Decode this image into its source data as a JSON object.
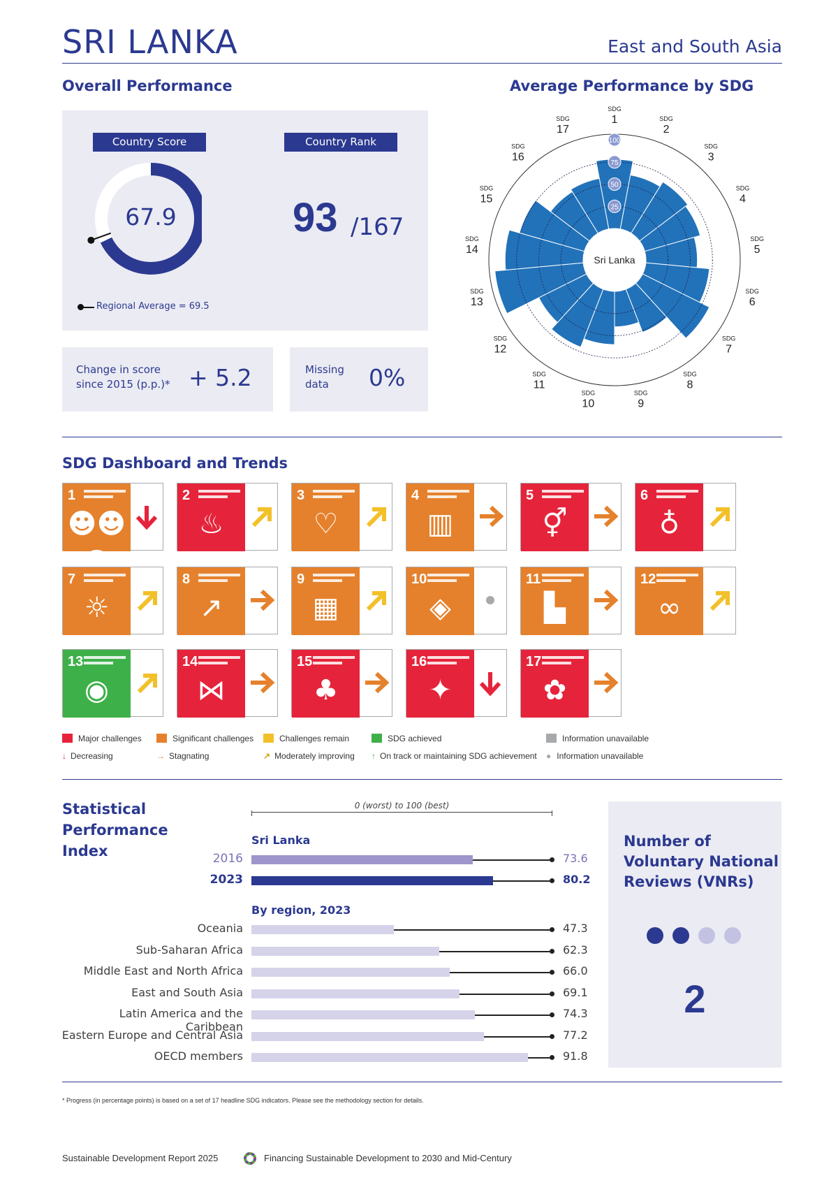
{
  "header": {
    "country": "SRI LANKA",
    "region": "East and South Asia"
  },
  "overall": {
    "title": "Overall Performance",
    "score_label": "Country Score",
    "rank_label": "Country Rank",
    "score": "67.9",
    "score_fraction": 0.679,
    "regional_avg_fraction": 0.695,
    "rank": "93",
    "rank_total": "/167",
    "regional_average_text": "Regional Average = 69.5",
    "change_label_1": "Change in score",
    "change_label_2": "since 2015 (p.p.)*",
    "change_value": "+ 5.2",
    "missing_label_1": "Missing",
    "missing_label_2": "data",
    "missing_value": "0%"
  },
  "radar": {
    "title": "Average Performance by SDG",
    "center_label": "Sri Lanka",
    "ring_labels": [
      "25",
      "50",
      "75",
      "100"
    ],
    "sdg_prefix": "SDG",
    "sdg_numbers": [
      "1",
      "2",
      "3",
      "4",
      "5",
      "6",
      "7",
      "8",
      "9",
      "10",
      "11",
      "12",
      "13",
      "14",
      "15",
      "16",
      "17"
    ],
    "values": [
      78,
      62,
      68,
      65,
      58,
      72,
      84,
      52,
      40,
      60,
      70,
      60,
      100,
      88,
      76,
      55,
      58
    ],
    "color": "#2272b9"
  },
  "dashboard": {
    "title": "SDG Dashboard and Trends",
    "tiles": [
      {
        "num": "1",
        "glyph": "☻☻☻",
        "color": "#e5812c",
        "arrow": "down",
        "arrow_color": "#e5243b"
      },
      {
        "num": "2",
        "glyph": "♨",
        "color": "#e5243b",
        "arrow": "up-right",
        "arrow_color": "#f2c029"
      },
      {
        "num": "3",
        "glyph": "♡",
        "color": "#e5812c",
        "arrow": "up-right",
        "arrow_color": "#f2c029"
      },
      {
        "num": "4",
        "glyph": "▥",
        "color": "#e5812c",
        "arrow": "right",
        "arrow_color": "#e5812c"
      },
      {
        "num": "5",
        "glyph": "⚥",
        "color": "#e5243b",
        "arrow": "right",
        "arrow_color": "#e5812c"
      },
      {
        "num": "6",
        "glyph": "♁",
        "color": "#e5243b",
        "arrow": "up-right",
        "arrow_color": "#f2c029"
      },
      {
        "num": "7",
        "glyph": "☼",
        "color": "#e5812c",
        "arrow": "up-right",
        "arrow_color": "#f2c029"
      },
      {
        "num": "8",
        "glyph": "↗",
        "color": "#e5812c",
        "arrow": "right",
        "arrow_color": "#e5812c"
      },
      {
        "num": "9",
        "glyph": "▦",
        "color": "#e5812c",
        "arrow": "up-right",
        "arrow_color": "#f2c029"
      },
      {
        "num": "10",
        "glyph": "◈",
        "color": "#e5812c",
        "arrow": "dot",
        "arrow_color": "#a7a9ac"
      },
      {
        "num": "11",
        "glyph": "▙",
        "color": "#e5812c",
        "arrow": "right",
        "arrow_color": "#e5812c"
      },
      {
        "num": "12",
        "glyph": "∞",
        "color": "#e5812c",
        "arrow": "up-right",
        "arrow_color": "#f2c029"
      },
      {
        "num": "13",
        "glyph": "◉",
        "color": "#3eb049",
        "arrow": "up-right",
        "arrow_color": "#f2c029"
      },
      {
        "num": "14",
        "glyph": "⋈",
        "color": "#e5243b",
        "arrow": "right",
        "arrow_color": "#e5812c"
      },
      {
        "num": "15",
        "glyph": "♣",
        "color": "#e5243b",
        "arrow": "right",
        "arrow_color": "#e5812c"
      },
      {
        "num": "16",
        "glyph": "✦",
        "color": "#e5243b",
        "arrow": "down",
        "arrow_color": "#e5243b"
      },
      {
        "num": "17",
        "glyph": "✿",
        "color": "#e5243b",
        "arrow": "right",
        "arrow_color": "#e5812c"
      }
    ],
    "legend_status": [
      "Major challenges",
      "Significant challenges",
      "Challenges remain",
      "SDG achieved",
      "Information unavailable"
    ],
    "legend_status_colors": [
      "#e5243b",
      "#e5812c",
      "#f2c029",
      "#3eb049",
      "#a7a9ac"
    ],
    "legend_trend": [
      "Decreasing",
      "Stagnating",
      "Moderately improving",
      "On track or maintaining SDG achievement",
      "Information unavailable"
    ]
  },
  "spi": {
    "title_1": "Statistical",
    "title_2": "Performance",
    "title_3": "Index",
    "scale": "0 (worst) to 100 (best)",
    "country_heading": "Sri Lanka",
    "country_rows": [
      {
        "label": "2016",
        "value": 73.6,
        "value_text": "73.6"
      },
      {
        "label": "2023",
        "value": 80.2,
        "value_text": "80.2"
      }
    ],
    "region_heading": "By region, 2023",
    "region_rows": [
      {
        "label": "Oceania",
        "value": 47.3,
        "value_text": "47.3"
      },
      {
        "label": "Sub-Saharan Africa",
        "value": 62.3,
        "value_text": "62.3"
      },
      {
        "label": "Middle East and North Africa",
        "value": 66.0,
        "value_text": "66.0"
      },
      {
        "label": "East and South Asia",
        "value": 69.1,
        "value_text": "69.1"
      },
      {
        "label": "Latin America and the Caribbean",
        "value": 74.3,
        "value_text": "74.3"
      },
      {
        "label": "Eastern Europe and Central Asia",
        "value": 77.2,
        "value_text": "77.2"
      },
      {
        "label": "OECD members",
        "value": 91.8,
        "value_text": "91.8"
      }
    ]
  },
  "vnr": {
    "title_1": "Number of",
    "title_2": "Voluntary National",
    "title_3": "Reviews (VNRs)",
    "count": "2",
    "filled": 2,
    "total": 4
  },
  "footnote": "* Progress (in percentage points) is based on a set of 17 headline SDG indicators. Please see the methodology section for details.",
  "footer": {
    "left": "Sustainable Development Report 2025",
    "right": "Financing Sustainable Development to 2030 and Mid-Century"
  }
}
